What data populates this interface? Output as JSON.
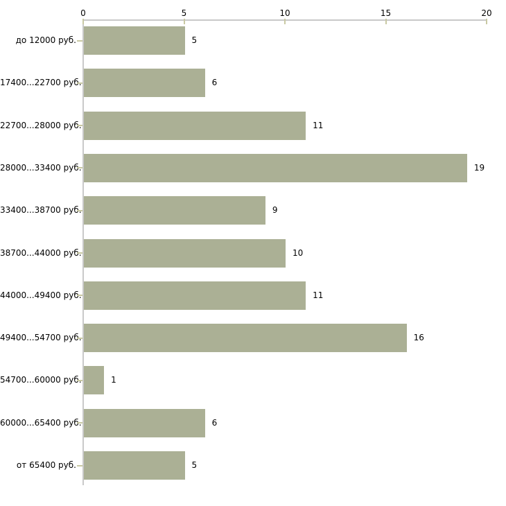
{
  "chart_data": {
    "type": "bar",
    "orientation": "horizontal",
    "title": "",
    "xlabel": "",
    "ylabel": "",
    "categories": [
      "до 12000 руб.",
      "17400...22700 руб.",
      "22700...28000 руб.",
      "28000...33400 руб.",
      "33400...38700 руб.",
      "38700...44000 руб.",
      "44000...49400 руб.",
      "49400...54700 руб.",
      "54700...60000 руб.",
      "60000...65400 руб.",
      "от 65400 руб."
    ],
    "values": [
      5,
      6,
      11,
      19,
      9,
      10,
      11,
      16,
      1,
      6,
      5
    ],
    "xlim": [
      0,
      20
    ],
    "x_ticks": [
      0,
      5,
      10,
      15,
      20
    ],
    "grid": false,
    "legend": false,
    "value_labels": true,
    "colors": {
      "bar": "#abb095",
      "axis_line": "#c9c9c9",
      "tick": "#c9c9a3",
      "text": "#000000",
      "background": "#ffffff"
    }
  }
}
